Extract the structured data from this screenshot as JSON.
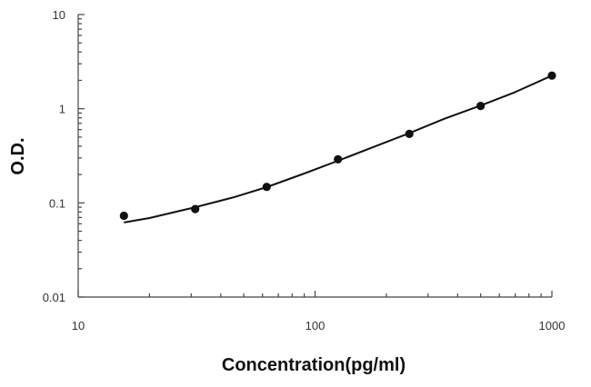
{
  "chart_data": {
    "type": "scatter",
    "title": "",
    "xlabel": "Concentration(pg/ml)",
    "ylabel": "O.D.",
    "xscale": "log",
    "yscale": "log",
    "xlim": [
      10,
      1000
    ],
    "ylim": [
      0.01,
      10
    ],
    "xticks": [
      "10",
      "100",
      "1000"
    ],
    "yticks": [
      "0.01",
      "0.1",
      "1",
      "10"
    ],
    "grid": false,
    "legend": "none",
    "series": [
      {
        "kind": "points",
        "marker": "filled-circle",
        "color": "#111111",
        "x": [
          15.6,
          31.2,
          62.5,
          125,
          250,
          500,
          1000
        ],
        "y": [
          0.073,
          0.086,
          0.148,
          0.29,
          0.54,
          1.07,
          2.25
        ]
      },
      {
        "kind": "fitted-curve",
        "color": "#111111",
        "x": [
          15.6,
          20,
          31.2,
          45,
          62.5,
          90,
          125,
          180,
          250,
          350,
          500,
          700,
          1000
        ],
        "y": [
          0.062,
          0.069,
          0.09,
          0.114,
          0.147,
          0.205,
          0.28,
          0.4,
          0.55,
          0.78,
          1.08,
          1.5,
          2.25
        ]
      }
    ]
  }
}
